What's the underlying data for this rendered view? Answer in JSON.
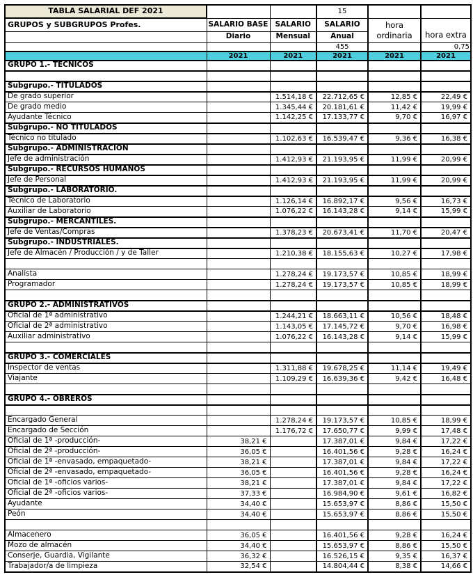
{
  "colors": {
    "title_fill": "#ECE9D8",
    "year_band_fill": "#4FCEE0",
    "border": "#000000",
    "text": "#000000"
  },
  "header": {
    "title": "TABLA SALARIAL DEF 2021",
    "top_value": "15",
    "groups_label": "GRUPOS y SUBGRUPOS Profes.",
    "salario_base_label": "SALARIO BASE",
    "diario_label": "Diario",
    "salario_mensual_label": "SALARIO",
    "mensual_label": "Mensual",
    "salario_anual_label": "SALARIO",
    "anual_label": "Anual",
    "hora_ordinaria_label": "hora ordinaria",
    "hora_extra_label": "hora extra",
    "anual_factor": "455",
    "extra_factor": "0,75",
    "years": [
      "2021",
      "2021",
      "2021",
      "2021",
      "2021"
    ]
  },
  "columns_order": [
    "diario",
    "mensual",
    "anual",
    "ordinaria",
    "extra"
  ],
  "rows": [
    {
      "type": "group",
      "label": "GRUPO 1.- TECNICOS"
    },
    {
      "type": "empty"
    },
    {
      "type": "sub",
      "label": "Subgrupo.- TITULADOS"
    },
    {
      "type": "data",
      "label": "De grado superior",
      "values": [
        "",
        "1.514,18 €",
        "22.712,65 €",
        "12,85 €",
        "22,49 €"
      ]
    },
    {
      "type": "data",
      "label": "De grado medio",
      "values": [
        "",
        "1.345,44 €",
        "20.181,61 €",
        "11,42 €",
        "19,99 €"
      ]
    },
    {
      "type": "data",
      "label": "Ayudante Técnico",
      "values": [
        "",
        "1.142,25 €",
        "17.133,77 €",
        "9,70 €",
        "16,97 €"
      ]
    },
    {
      "type": "sub",
      "label": "Subgrupo.- NO TITULADOS"
    },
    {
      "type": "data",
      "label": "Técnico no titulado",
      "values": [
        "",
        "1.102,63 €",
        "16.539,47 €",
        "9,36 €",
        "16,38 €"
      ]
    },
    {
      "type": "sub",
      "label": "Subgrupo.- ADMINISTRACION"
    },
    {
      "type": "data",
      "label": "Jefe de administración",
      "values": [
        "",
        "1.412,93 €",
        "21.193,95 €",
        "11,99 €",
        "20,99 €"
      ]
    },
    {
      "type": "sub",
      "label": "Subgrupo.- RECURSOS HUMANOS"
    },
    {
      "type": "data",
      "label": "Jefe de Personal",
      "values": [
        "",
        "1.412,93 €",
        "21.193,95 €",
        "11,99 €",
        "20,99 €"
      ]
    },
    {
      "type": "sub",
      "label": "Subgrupo.- LABORATORIO."
    },
    {
      "type": "data",
      "label": "Técnico de Laboratorio",
      "values": [
        "",
        "1.126,14 €",
        "16.892,17 €",
        "9,56 €",
        "16,73 €"
      ]
    },
    {
      "type": "data",
      "label": "Auxiliar de Laboratorio",
      "values": [
        "",
        "1.076,22 €",
        "16.143,28 €",
        "9,14 €",
        "15,99 €"
      ]
    },
    {
      "type": "sub",
      "label": "Subgrupo.- MERCANTILES."
    },
    {
      "type": "data",
      "label": "Jefe de Ventas/Compras",
      "values": [
        "",
        "1.378,23 €",
        "20.673,41 €",
        "11,70 €",
        "20,47 €"
      ]
    },
    {
      "type": "sub",
      "label": "Subgrupo.- INDUSTRIALES."
    },
    {
      "type": "data",
      "label": "Jefe de Almacén / Producción / y de Taller",
      "values": [
        "",
        "1.210,38 €",
        "18.155,63 €",
        "10,27 €",
        "17,98 €"
      ]
    },
    {
      "type": "empty"
    },
    {
      "type": "data",
      "label": "Analista",
      "values": [
        "",
        "1.278,24 €",
        "19.173,57 €",
        "10,85 €",
        "18,99 €"
      ]
    },
    {
      "type": "data",
      "label": "Programador",
      "values": [
        "",
        "1.278,24 €",
        "19.173,57 €",
        "10,85 €",
        "18,99 €"
      ]
    },
    {
      "type": "empty"
    },
    {
      "type": "group",
      "label": "GRUPO 2.- ADMINISTRATIVOS"
    },
    {
      "type": "data",
      "label": "Oficial de 1ª administrativo",
      "values": [
        "",
        "1.244,21 €",
        "18.663,11 €",
        "10,56 €",
        "18,48 €"
      ]
    },
    {
      "type": "data",
      "label": "Oficial de 2ª administrativo",
      "values": [
        "",
        "1.143,05 €",
        "17.145,72 €",
        "9,70 €",
        "16,98 €"
      ]
    },
    {
      "type": "data",
      "label": "Auxiliar administrativo",
      "values": [
        "",
        "1.076,22 €",
        "16.143,28 €",
        "9,14 €",
        "15,99 €"
      ]
    },
    {
      "type": "empty"
    },
    {
      "type": "group",
      "label": "GRUPO 3.- COMERCIALES"
    },
    {
      "type": "data",
      "label": "Inspector de ventas",
      "values": [
        "",
        "1.311,88 €",
        "19.678,25 €",
        "11,14 €",
        "19,49 €"
      ]
    },
    {
      "type": "data",
      "label": "Viajante",
      "values": [
        "",
        "1.109,29 €",
        "16.639,36 €",
        "9,42 €",
        "16,48 €"
      ]
    },
    {
      "type": "empty"
    },
    {
      "type": "group",
      "label": "GRUPO 4.- OBREROS"
    },
    {
      "type": "empty"
    },
    {
      "type": "data",
      "label": "Encargado General",
      "values": [
        "",
        "1.278,24 €",
        "19.173,57 €",
        "10,85 €",
        "18,99 €"
      ]
    },
    {
      "type": "data",
      "label": "Encargado de Sección",
      "values": [
        "",
        "1.176,72 €",
        "17.650,77 €",
        "9,99 €",
        "17,48 €"
      ]
    },
    {
      "type": "data",
      "label": "Oficial de 1ª -producción-",
      "values": [
        "38,21 €",
        "",
        "17.387,01 €",
        "9,84 €",
        "17,22 €"
      ]
    },
    {
      "type": "data",
      "label": "Oficial de 2ª -producción-",
      "values": [
        "36,05 €",
        "",
        "16.401,56 €",
        "9,28 €",
        "16,24 €"
      ]
    },
    {
      "type": "data",
      "label": "Oficial de 1ª -envasado, empaquetado-",
      "values": [
        "38,21 €",
        "",
        "17.387,01 €",
        "9,84 €",
        "17,22 €"
      ]
    },
    {
      "type": "data",
      "label": "Oficial de 2ª -envasado, empaquetado-",
      "values": [
        "36,05 €",
        "",
        "16.401,56 €",
        "9,28 €",
        "16,24 €"
      ]
    },
    {
      "type": "data",
      "label": "Oficial de 1ª -oficios varios-",
      "values": [
        "38,21 €",
        "",
        "17.387,01 €",
        "9,84 €",
        "17,22 €"
      ]
    },
    {
      "type": "data",
      "label": "Oficial de 2ª -oficios varios-",
      "values": [
        "37,33 €",
        "",
        "16.984,90 €",
        "9,61 €",
        "16,82 €"
      ]
    },
    {
      "type": "data",
      "label": "Ayudante",
      "values": [
        "34,40 €",
        "",
        "15.653,97 €",
        "8,86 €",
        "15,50 €"
      ]
    },
    {
      "type": "data",
      "label": "Peón",
      "values": [
        "34,40 €",
        "",
        "15.653,97 €",
        "8,86 €",
        "15,50 €"
      ]
    },
    {
      "type": "empty"
    },
    {
      "type": "data",
      "label": "Almacenero",
      "values": [
        "36,05 €",
        "",
        "16.401,56 €",
        "9,28 €",
        "16,24 €"
      ]
    },
    {
      "type": "data",
      "label": "Mozo de almacén",
      "values": [
        "34,40 €",
        "",
        "15.653,97 €",
        "8,86 €",
        "15,50 €"
      ]
    },
    {
      "type": "data",
      "label": "Conserje, Guardia, Vigilante",
      "values": [
        "36,32 €",
        "",
        "16.526,15 €",
        "9,35 €",
        "16,37 €"
      ]
    },
    {
      "type": "data",
      "label": "Trabajador/a de limpieza",
      "values": [
        "32,54 €",
        "",
        "14.804,44 €",
        "8,38 €",
        "14,66 €"
      ]
    }
  ]
}
